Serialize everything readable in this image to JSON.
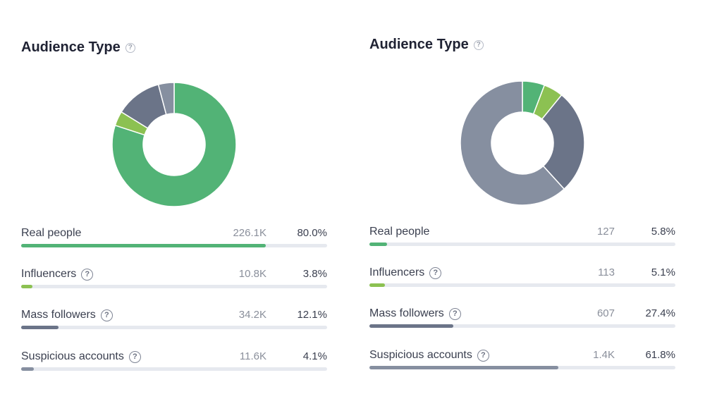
{
  "chart_data": [
    {
      "type": "pie",
      "title": "Audience Type",
      "colors": [
        "#52b376",
        "#8cc152",
        "#6b7488",
        "#868fa0"
      ],
      "rows": [
        {
          "label": "Real people",
          "count": "226.1K",
          "percent_label": "80.0%",
          "value": 80.0,
          "help": false
        },
        {
          "label": "Influencers",
          "count": "10.8K",
          "percent_label": "3.8%",
          "value": 3.8,
          "help": true
        },
        {
          "label": "Mass followers",
          "count": "34.2K",
          "percent_label": "12.1%",
          "value": 12.1,
          "help": true
        },
        {
          "label": "Suspicious accounts",
          "count": "11.6K",
          "percent_label": "4.1%",
          "value": 4.1,
          "help": true
        }
      ]
    },
    {
      "type": "pie",
      "title": "Audience Type",
      "colors": [
        "#52b376",
        "#8cc152",
        "#6b7488",
        "#868fa0"
      ],
      "rows": [
        {
          "label": "Real people",
          "count": "127",
          "percent_label": "5.8%",
          "value": 5.8,
          "help": false
        },
        {
          "label": "Influencers",
          "count": "113",
          "percent_label": "5.1%",
          "value": 5.1,
          "help": true
        },
        {
          "label": "Mass followers",
          "count": "607",
          "percent_label": "27.4%",
          "value": 27.4,
          "help": true
        },
        {
          "label": "Suspicious accounts",
          "count": "1.4K",
          "percent_label": "61.8%",
          "value": 61.8,
          "help": true
        }
      ]
    }
  ],
  "help_glyph": "?"
}
